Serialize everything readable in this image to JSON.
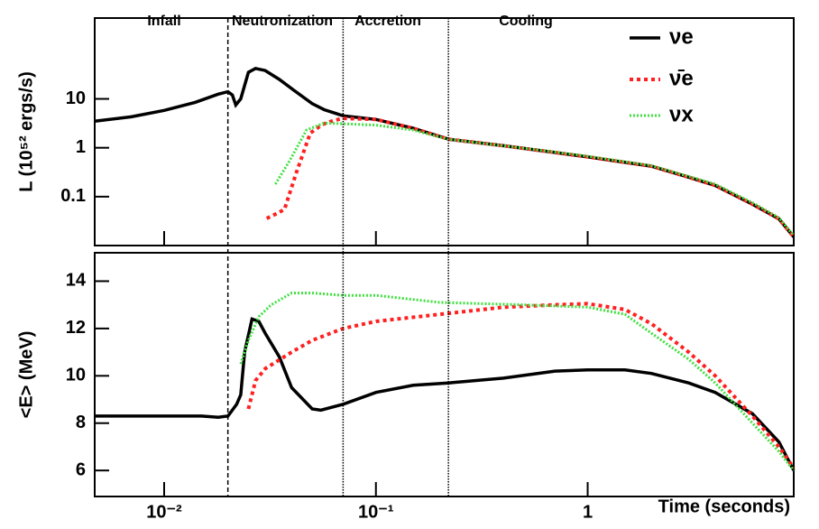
{
  "chart_data": [
    {
      "type": "line",
      "log_y": true,
      "log_x": true,
      "ylabel": "L (10⁵² ergs/s)",
      "xlim": [
        0.0047,
        9.4
      ],
      "ylim": [
        0.01,
        450
      ],
      "yticks": [
        0.1,
        1,
        10
      ],
      "legend": "upper right",
      "phases": [
        "Infall",
        "Neutronization",
        "Accretion",
        "Cooling"
      ],
      "vlines": [
        0.02,
        0.07,
        0.22
      ],
      "series": [
        {
          "name": "νe",
          "color": "#000000",
          "x": [
            0.0047,
            0.007,
            0.01,
            0.014,
            0.018,
            0.02,
            0.021,
            0.0218,
            0.023,
            0.025,
            0.027,
            0.03,
            0.035,
            0.041,
            0.05,
            0.057,
            0.065,
            0.07,
            0.1,
            0.15,
            0.22,
            0.4,
            0.7,
            1,
            2,
            3,
            4,
            6,
            8,
            9.4
          ],
          "values": [
            3.5,
            4.3,
            5.8,
            8.5,
            12.5,
            14,
            12,
            7.5,
            10,
            35,
            42,
            38,
            25,
            15,
            8,
            6,
            5,
            4.5,
            3.8,
            2.5,
            1.5,
            1.1,
            0.8,
            0.65,
            0.42,
            0.25,
            0.17,
            0.07,
            0.035,
            0.015
          ]
        },
        {
          "name": "ν̄e",
          "color": "#ff2020",
          "x": [
            0.0305,
            0.034,
            0.037,
            0.042,
            0.049,
            0.056,
            0.063,
            0.07,
            0.1,
            0.15,
            0.22,
            0.4,
            0.7,
            1,
            2,
            3,
            4,
            6,
            8,
            9.4
          ],
          "values": [
            0.036,
            0.045,
            0.055,
            0.3,
            2,
            3,
            3.6,
            4,
            3.8,
            2.5,
            1.5,
            1.1,
            0.8,
            0.65,
            0.42,
            0.25,
            0.17,
            0.07,
            0.035,
            0.015
          ]
        },
        {
          "name": "νx",
          "color": "#40e040",
          "x": [
            0.0335,
            0.039,
            0.047,
            0.057,
            0.07,
            0.1,
            0.15,
            0.22,
            0.4,
            0.7,
            1,
            2,
            3,
            4,
            6,
            8,
            9.4
          ],
          "values": [
            0.18,
            0.53,
            2.3,
            3.2,
            3.1,
            2.9,
            2.3,
            1.5,
            1.1,
            0.82,
            0.67,
            0.43,
            0.26,
            0.18,
            0.075,
            0.037,
            0.016
          ]
        }
      ]
    },
    {
      "type": "line",
      "log_x": true,
      "ylabel": "<E> (MeV)",
      "xlabel": "Time (seconds)",
      "xlim": [
        0.0047,
        9.4
      ],
      "xticks": [
        {
          "value": 0.01,
          "label": "10⁻²"
        },
        {
          "value": 0.1,
          "label": "10⁻¹"
        },
        1
      ],
      "ylim": [
        4.9,
        15.2
      ],
      "yticks": [
        6,
        8,
        10,
        12,
        14
      ],
      "series": [
        {
          "name": "νe",
          "color": "#000000",
          "x": [
            0.0047,
            0.01,
            0.015,
            0.018,
            0.02,
            0.022,
            0.023,
            0.024,
            0.026,
            0.028,
            0.03,
            0.035,
            0.04,
            0.05,
            0.055,
            0.07,
            0.1,
            0.15,
            0.22,
            0.4,
            0.7,
            1,
            1.5,
            2,
            3,
            4,
            6,
            8,
            9.4
          ],
          "values": [
            8.3,
            8.3,
            8.3,
            8.25,
            8.3,
            8.8,
            9.2,
            11,
            12.4,
            12.3,
            11.8,
            10.8,
            9.5,
            8.6,
            8.55,
            8.8,
            9.3,
            9.6,
            9.7,
            9.9,
            10.2,
            10.25,
            10.25,
            10.1,
            9.7,
            9.3,
            8.4,
            7.2,
            6.0
          ]
        },
        {
          "name": "ν̄e",
          "color": "#ff2020",
          "x": [
            0.025,
            0.027,
            0.03,
            0.04,
            0.05,
            0.07,
            0.1,
            0.2,
            0.4,
            0.7,
            1,
            1.5,
            2,
            3,
            4,
            6,
            8,
            9.4
          ],
          "values": [
            8.6,
            9.8,
            10.3,
            11,
            11.5,
            12,
            12.3,
            12.6,
            12.9,
            13,
            13.05,
            12.8,
            12.2,
            11,
            10,
            8.3,
            7,
            6.1
          ]
        },
        {
          "name": "νx",
          "color": "#40e040",
          "x": [
            0.023,
            0.025,
            0.028,
            0.032,
            0.04,
            0.05,
            0.07,
            0.1,
            0.2,
            0.5,
            1,
            1.5,
            2,
            3,
            4,
            6,
            8,
            9.4
          ],
          "values": [
            10.5,
            11.5,
            12.5,
            13,
            13.5,
            13.5,
            13.4,
            13.4,
            13.1,
            13,
            12.9,
            12.6,
            11.8,
            10.7,
            9.7,
            8.0,
            6.8,
            6.0
          ]
        }
      ]
    }
  ]
}
